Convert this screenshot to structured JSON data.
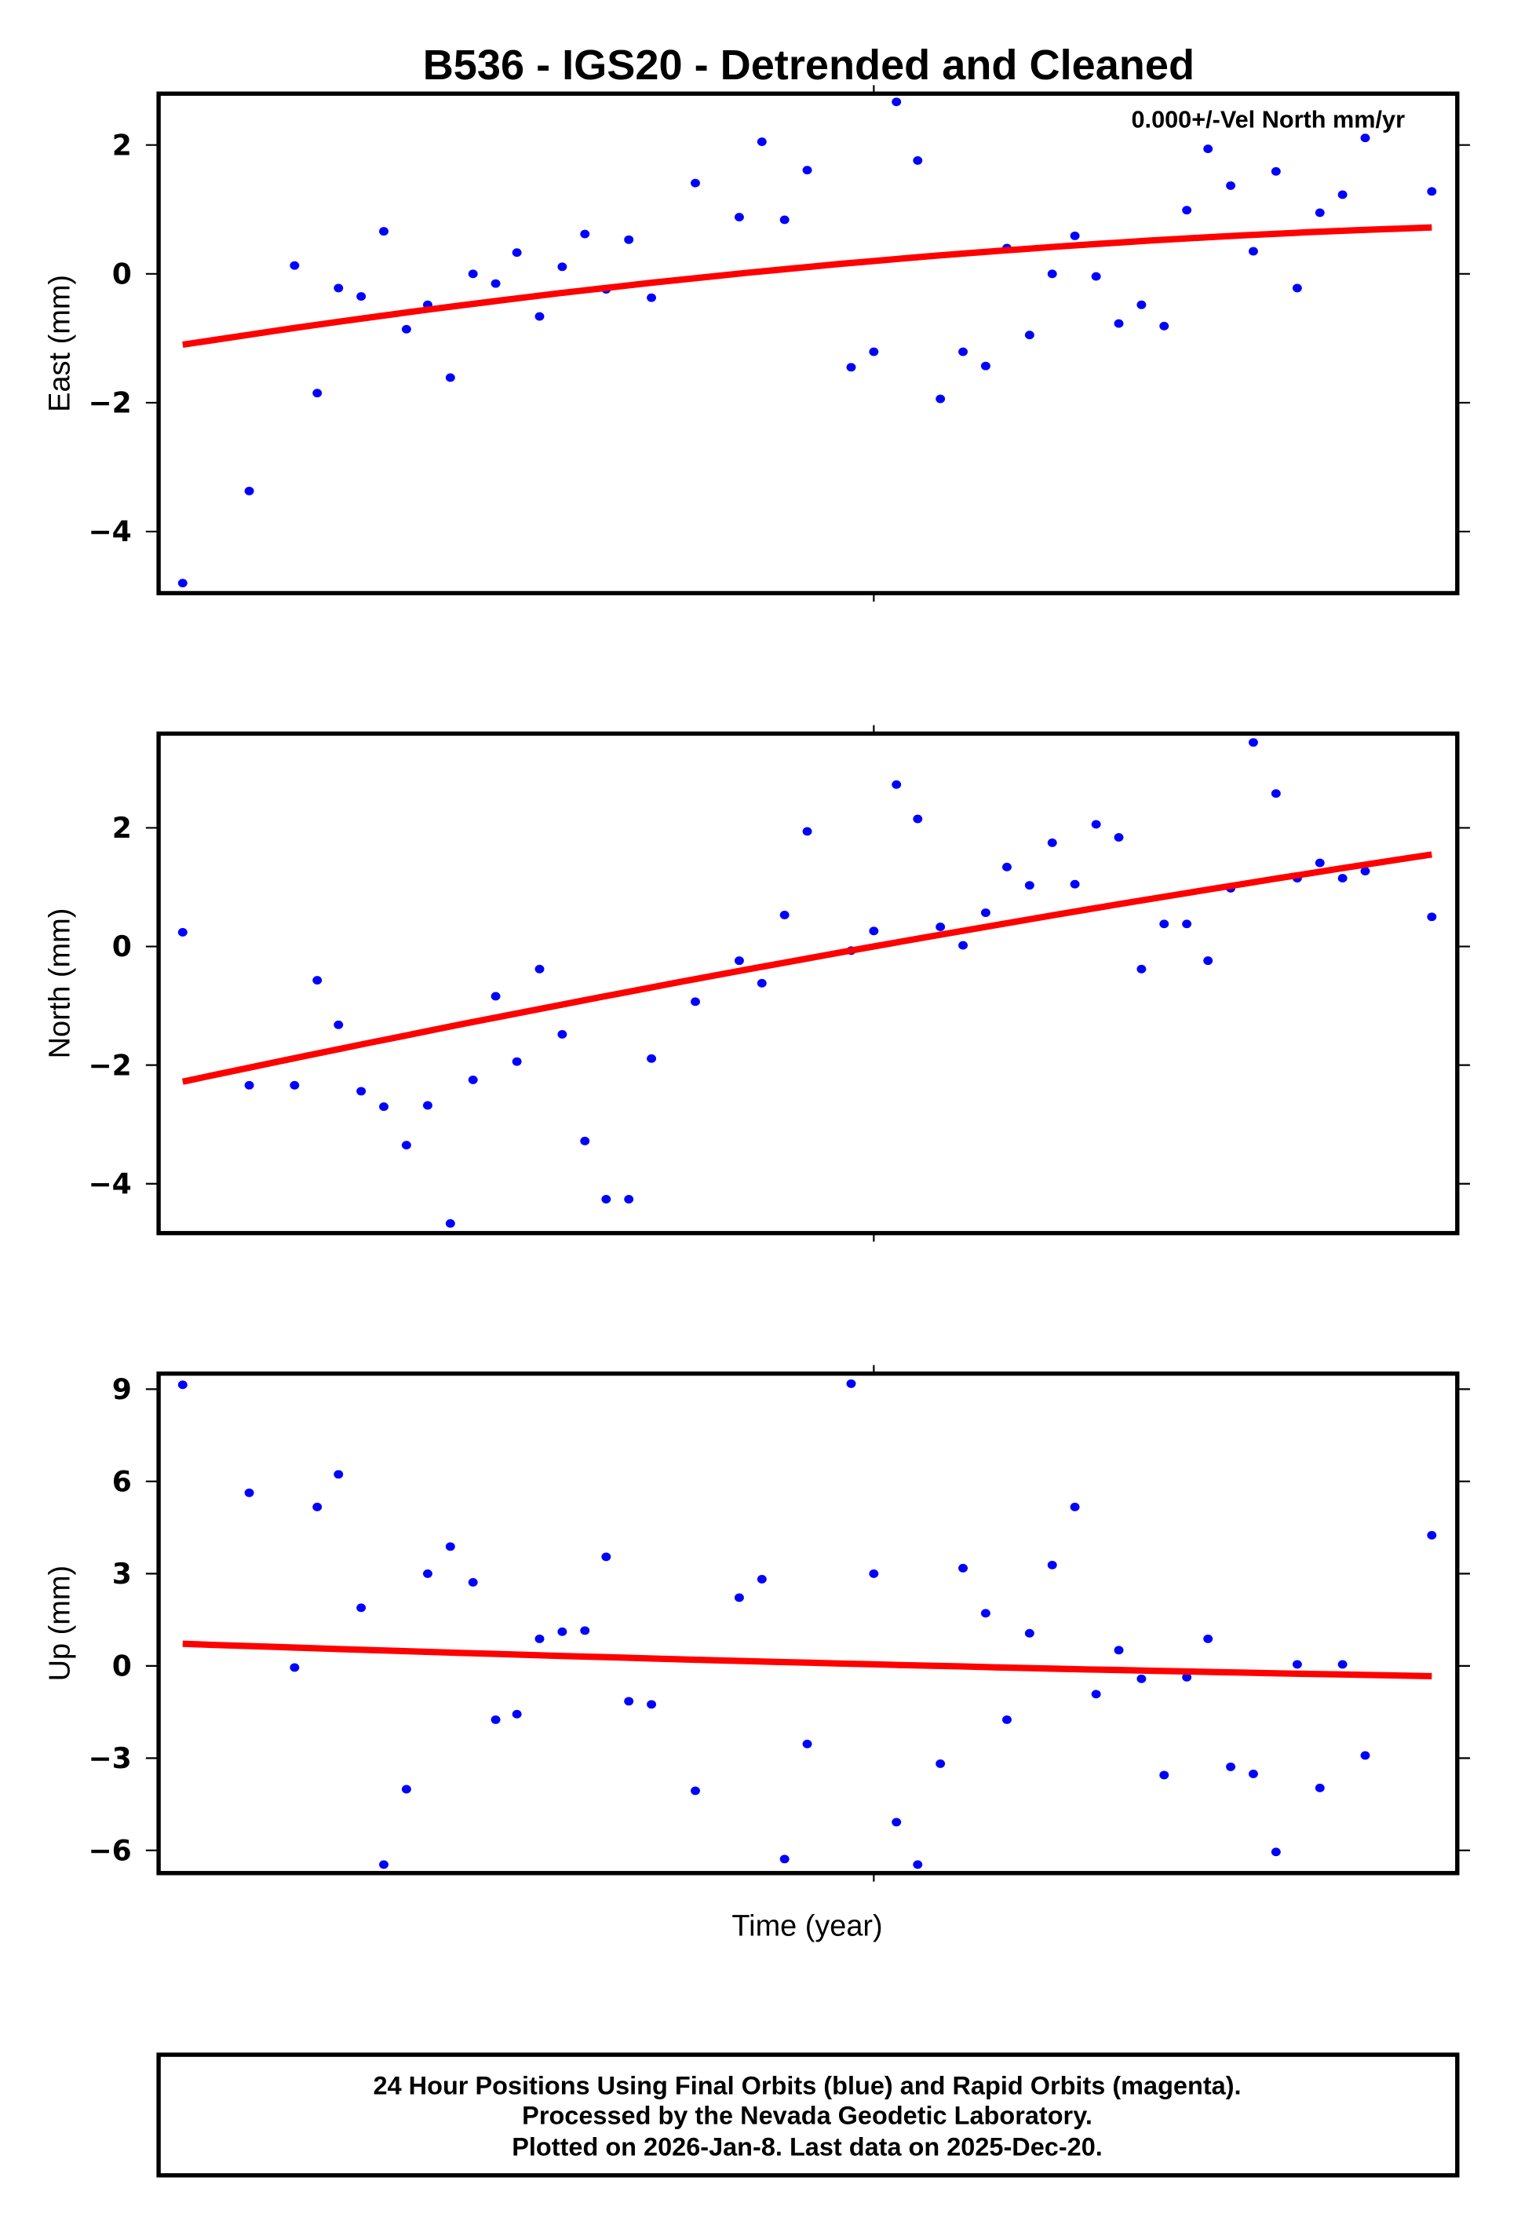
{
  "chart_data": {
    "type": "scatter",
    "title": "B536 - IGS20 - Detrended and Cleaned",
    "xlabel": "Time (year)",
    "legend_note": "0.000+/-Vel North mm/yr",
    "point_color": "#0000ff",
    "trend_color": "#ff0000",
    "x_index": [
      129,
      176,
      208,
      224,
      239,
      255,
      271,
      287,
      302,
      318,
      334,
      350,
      365,
      381,
      397,
      413,
      428,
      444,
      460,
      491,
      522,
      538,
      554,
      570,
      601,
      617,
      633,
      648,
      664,
      680,
      696,
      711,
      727,
      743,
      759,
      774,
      790,
      806,
      822,
      838,
      853,
      869,
      885,
      901,
      916,
      932,
      948,
      964,
      1011
    ],
    "panels": [
      {
        "name": "East",
        "ylabel": "East (mm)",
        "yticks": [
          2,
          0,
          -2,
          -4
        ],
        "ytick_labels": [
          "2",
          "0",
          "−2",
          "−4"
        ],
        "ylim": [
          -4.9,
          2.8
        ],
        "values": [
          -4.8,
          -3.37,
          0.13,
          -1.85,
          -0.22,
          -0.35,
          0.66,
          -0.86,
          -0.48,
          -1.61,
          0.0,
          -0.15,
          0.33,
          -0.66,
          0.11,
          0.62,
          -0.24,
          0.53,
          -0.37,
          1.41,
          0.88,
          2.05,
          0.84,
          1.61,
          -1.45,
          -1.21,
          2.67,
          1.76,
          -1.94,
          -1.21,
          -1.43,
          0.4,
          -0.95,
          0.0,
          0.59,
          -0.04,
          -0.77,
          -0.48,
          -0.81,
          0.99,
          1.94,
          1.37,
          0.35,
          1.59,
          -0.22,
          0.95,
          1.23,
          2.11,
          1.28
        ],
        "trend": {
          "start": -1.1,
          "mid": 0.2,
          "end": 0.72
        }
      },
      {
        "name": "North",
        "ylabel": "North (mm)",
        "yticks": [
          2,
          0,
          -2,
          -4
        ],
        "ytick_labels": [
          "2",
          "0",
          "−2",
          "−4"
        ],
        "ylim": [
          -4.85,
          3.6
        ],
        "values": [
          0.24,
          -2.34,
          -2.34,
          -0.57,
          -1.32,
          -2.44,
          -2.7,
          -3.35,
          -2.68,
          -4.67,
          -2.25,
          -0.84,
          -1.94,
          -0.38,
          -1.48,
          -3.28,
          -4.26,
          -4.26,
          -1.89,
          -0.93,
          -0.24,
          -0.62,
          0.53,
          1.94,
          -0.07,
          0.26,
          2.73,
          2.15,
          0.33,
          0.02,
          0.57,
          1.34,
          1.03,
          1.75,
          1.05,
          2.06,
          1.84,
          -0.38,
          0.38,
          0.38,
          -0.24,
          0.98,
          3.44,
          2.58,
          1.15,
          1.41,
          1.15,
          1.27,
          0.5
        ],
        "trend": {
          "start": -2.28,
          "mid": 0.0,
          "end": 1.55
        }
      },
      {
        "name": "Up",
        "ylabel": "Up (mm)",
        "yticks": [
          9,
          6,
          3,
          0,
          -3,
          -6
        ],
        "ytick_labels": [
          "9",
          "6",
          "3",
          "0",
          "−3",
          "−6"
        ],
        "ylim": [
          -6.7,
          9.5
        ],
        "values": [
          9.14,
          5.63,
          -0.05,
          5.17,
          6.23,
          1.89,
          -6.46,
          -4.01,
          3.0,
          3.88,
          2.72,
          -1.75,
          -1.57,
          0.88,
          1.11,
          1.15,
          3.55,
          -1.15,
          -1.25,
          -4.06,
          2.22,
          2.82,
          -6.28,
          -2.54,
          9.18,
          3.0,
          -5.08,
          -6.46,
          -3.18,
          3.18,
          1.71,
          -1.75,
          1.06,
          3.28,
          5.17,
          -0.92,
          0.51,
          -0.42,
          -3.55,
          -0.37,
          0.88,
          -3.28,
          -3.51,
          -6.05,
          0.05,
          -3.97,
          0.05,
          -2.91,
          4.25
        ],
        "trend": {
          "start": 0.72,
          "mid": 0.05,
          "end": -0.33
        }
      }
    ],
    "footer": [
      "24 Hour Positions Using Final Orbits (blue) and Rapid Orbits (magenta).",
      "Processed by the Nevada Geodetic Laboratory.",
      "Plotted on 2026-Jan-8. Last data on 2025-Dec-20."
    ]
  }
}
